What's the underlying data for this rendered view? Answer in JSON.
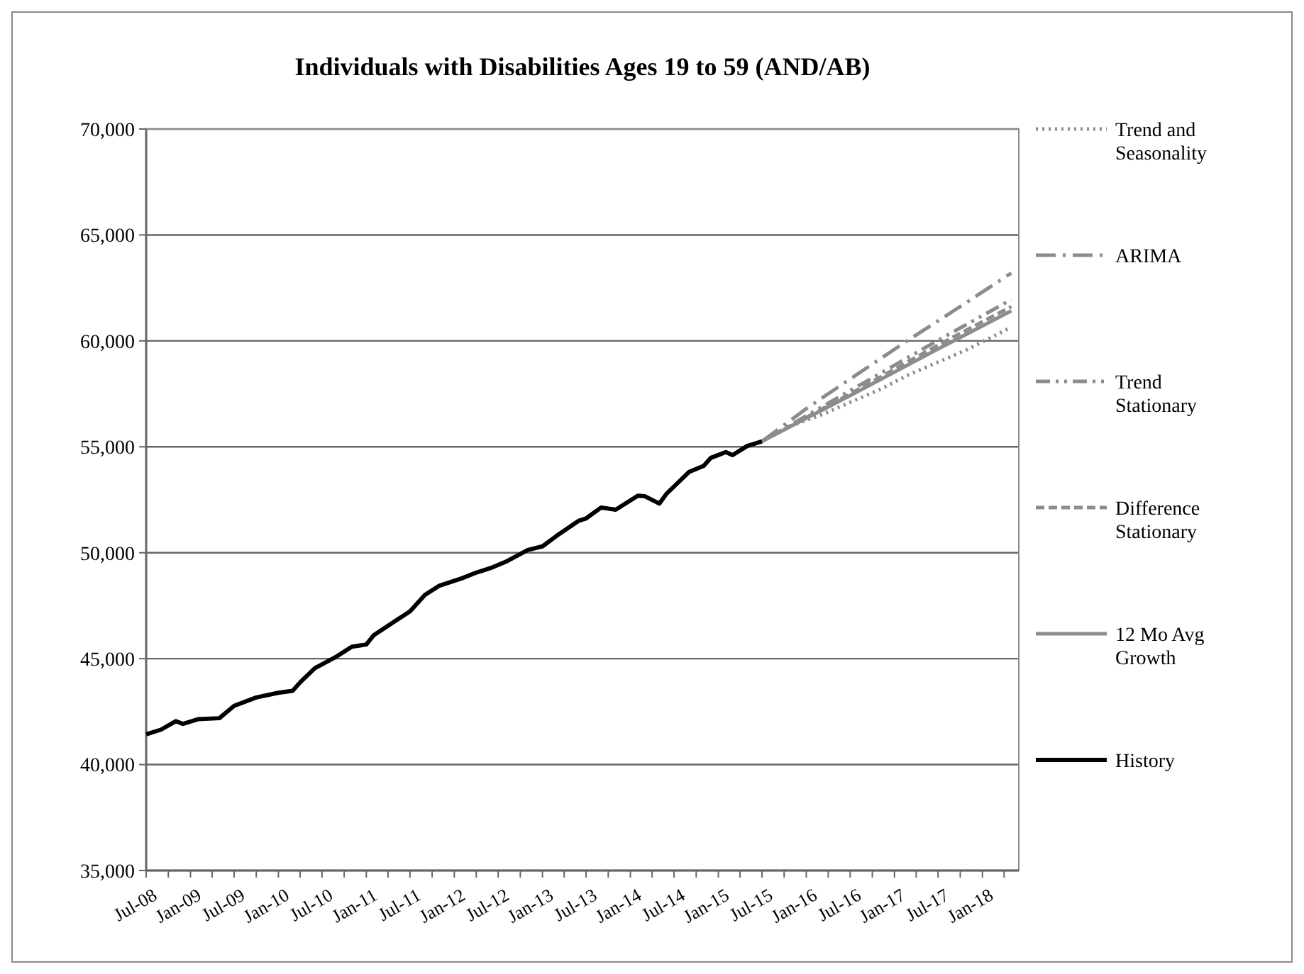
{
  "chart_data": {
    "type": "line",
    "title": "Individuals with Disabilities Ages 19 to 59 (AND/AB)",
    "xlim": [
      "2008-07",
      "2018-06"
    ],
    "xticks": [
      {
        "value": "2008-07",
        "label": "Jul-08"
      },
      {
        "value": "2008-10",
        "label": null
      },
      {
        "value": "2009-01",
        "label": "Jan-09"
      },
      {
        "value": "2009-04",
        "label": null
      },
      {
        "value": "2009-07",
        "label": "Jul-09"
      },
      {
        "value": "2009-10",
        "label": null
      },
      {
        "value": "2010-01",
        "label": "Jan-10"
      },
      {
        "value": "2010-04",
        "label": null
      },
      {
        "value": "2010-07",
        "label": "Jul-10"
      },
      {
        "value": "2010-10",
        "label": null
      },
      {
        "value": "2011-01",
        "label": "Jan-11"
      },
      {
        "value": "2011-04",
        "label": null
      },
      {
        "value": "2011-07",
        "label": "Jul-11"
      },
      {
        "value": "2011-10",
        "label": null
      },
      {
        "value": "2012-01",
        "label": "Jan-12"
      },
      {
        "value": "2012-04",
        "label": null
      },
      {
        "value": "2012-07",
        "label": "Jul-12"
      },
      {
        "value": "2012-10",
        "label": null
      },
      {
        "value": "2013-01",
        "label": "Jan-13"
      },
      {
        "value": "2013-04",
        "label": null
      },
      {
        "value": "2013-07",
        "label": "Jul-13"
      },
      {
        "value": "2013-10",
        "label": null
      },
      {
        "value": "2014-01",
        "label": "Jan-14"
      },
      {
        "value": "2014-04",
        "label": null
      },
      {
        "value": "2014-07",
        "label": "Jul-14"
      },
      {
        "value": "2014-10",
        "label": null
      },
      {
        "value": "2015-01",
        "label": "Jan-15"
      },
      {
        "value": "2015-04",
        "label": null
      },
      {
        "value": "2015-07",
        "label": "Jul-15"
      },
      {
        "value": "2015-10",
        "label": null
      },
      {
        "value": "2016-01",
        "label": "Jan-16"
      },
      {
        "value": "2016-04",
        "label": null
      },
      {
        "value": "2016-07",
        "label": "Jul-16"
      },
      {
        "value": "2016-10",
        "label": null
      },
      {
        "value": "2017-01",
        "label": "Jan-17"
      },
      {
        "value": "2017-04",
        "label": null
      },
      {
        "value": "2017-07",
        "label": "Jul-17"
      },
      {
        "value": "2017-10",
        "label": null
      },
      {
        "value": "2018-01",
        "label": "Jan-18"
      },
      {
        "value": "2018-04",
        "label": null
      }
    ],
    "ylim": [
      35000,
      70000
    ],
    "yticks": [
      {
        "value": 35000,
        "label": "35,000"
      },
      {
        "value": 40000,
        "label": "40,000"
      },
      {
        "value": 45000,
        "label": "45,000"
      },
      {
        "value": 50000,
        "label": "50,000"
      },
      {
        "value": 55000,
        "label": "55,000"
      },
      {
        "value": 60000,
        "label": "60,000"
      },
      {
        "value": 65000,
        "label": "65,000"
      },
      {
        "value": 70000,
        "label": "70,000"
      }
    ],
    "grid": "y",
    "legend": "right",
    "marker": "none",
    "series": [
      {
        "name": "Trend and Seasonality",
        "color": "#8c8c8c",
        "line_style": "dotted",
        "x": [
          "2015-07",
          "2015-11",
          "2016-03",
          "2016-07",
          "2016-11",
          "2017-03",
          "2017-07",
          "2017-11",
          "2018-03",
          "2018-05"
        ],
        "values": [
          55260,
          56000,
          56500,
          57100,
          57700,
          58400,
          59000,
          59600,
          60300,
          60650
        ]
      },
      {
        "name": "ARIMA",
        "color": "#8c8c8c",
        "line_style": "dash-dot",
        "x": [
          "2015-07",
          "2016-01",
          "2016-07",
          "2017-03",
          "2017-09",
          "2018-05"
        ],
        "values": [
          55260,
          56800,
          58200,
          60050,
          61400,
          63200
        ]
      },
      {
        "name": "Trend Stationary",
        "color": "#8c8c8c",
        "line_style": "dash-dot-dot",
        "x": [
          "2015-07",
          "2016-07",
          "2017-07",
          "2018-05"
        ],
        "values": [
          55260,
          57650,
          60030,
          61950
        ]
      },
      {
        "name": "Difference Stationary",
        "color": "#8c8c8c",
        "line_style": "dashed",
        "x": [
          "2015-07",
          "2016-07",
          "2017-07",
          "2018-05"
        ],
        "values": [
          55260,
          57500,
          59800,
          61620
        ]
      },
      {
        "name": "12 Mo Avg Growth",
        "color": "#8c8c8c",
        "line_style": "solid",
        "x": [
          "2015-07",
          "2016-07",
          "2017-07",
          "2018-05"
        ],
        "values": [
          55260,
          57420,
          59620,
          61420
        ]
      },
      {
        "name": "History",
        "color": "#000000",
        "line_style": "solid",
        "x": [
          "2008-07",
          "2008-09",
          "2008-11",
          "2008-12",
          "2009-02",
          "2009-05",
          "2009-07",
          "2009-10",
          "2010-01",
          "2010-03",
          "2010-04",
          "2010-06",
          "2010-09",
          "2010-11",
          "2011-01",
          "2011-02",
          "2011-05",
          "2011-07",
          "2011-09",
          "2011-11",
          "2012-02",
          "2012-04",
          "2012-06",
          "2012-08",
          "2012-11",
          "2013-01",
          "2013-03",
          "2013-06",
          "2013-07",
          "2013-09",
          "2013-11",
          "2014-02",
          "2014-03",
          "2014-05",
          "2014-06",
          "2014-09",
          "2014-11",
          "2014-12",
          "2015-02",
          "2015-03",
          "2015-05",
          "2015-07"
        ],
        "values": [
          41430,
          41650,
          42050,
          41920,
          42140,
          42190,
          42770,
          43170,
          43390,
          43480,
          43880,
          44550,
          45110,
          45560,
          45670,
          46110,
          46780,
          47230,
          48010,
          48450,
          48790,
          49060,
          49280,
          49570,
          50130,
          50300,
          50800,
          51510,
          51620,
          52130,
          52030,
          52690,
          52670,
          52320,
          52800,
          53810,
          54100,
          54480,
          54750,
          54610,
          55040,
          55260
        ]
      }
    ]
  }
}
